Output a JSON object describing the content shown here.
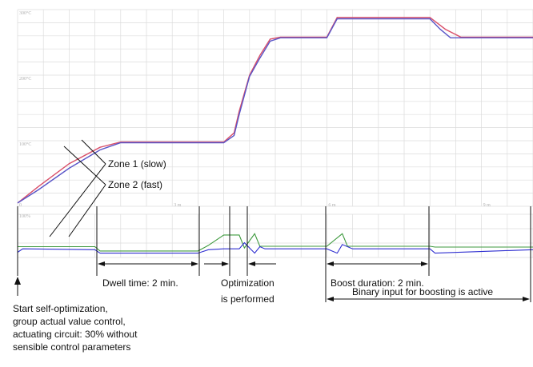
{
  "chart_data": {
    "type": "line",
    "title": "",
    "xlabel": "",
    "ylabel": "",
    "grid": true,
    "x_unit": "min",
    "temperature_panel": {
      "ylim": [
        0,
        300
      ],
      "y_ticks": [
        "300°C",
        "200°C",
        "100°C"
      ],
      "series": [
        {
          "color": "#d9506a",
          "x": [
            0.0,
            0.4,
            1.0,
            1.6,
            2.0,
            2.5,
            3.0,
            3.5,
            4.0,
            4.2,
            4.3,
            4.5,
            4.7,
            4.9,
            5.1,
            5.3,
            5.5,
            6.0,
            6.2,
            6.5,
            7.0,
            7.5,
            8.0,
            8.3,
            8.6,
            9.0,
            9.5,
            10.0
          ],
          "y": [
            5,
            30,
            65,
            90,
            98,
            98,
            98,
            98,
            98,
            112,
            145,
            200,
            230,
            255,
            258,
            258,
            258,
            258,
            288,
            288,
            288,
            288,
            288,
            270,
            258,
            258,
            258,
            258
          ]
        },
        {
          "color": "#5a56c8",
          "x": [
            0.0,
            0.4,
            1.0,
            1.6,
            2.0,
            2.5,
            3.0,
            3.5,
            4.0,
            4.2,
            4.3,
            4.5,
            4.7,
            4.9,
            5.1,
            5.3,
            5.5,
            6.0,
            6.2,
            6.5,
            7.0,
            7.5,
            8.0,
            8.2,
            8.4,
            9.0,
            9.5,
            10.0
          ],
          "y": [
            5,
            25,
            58,
            86,
            97,
            97,
            97,
            97,
            97,
            108,
            140,
            198,
            226,
            252,
            257,
            257,
            257,
            257,
            286,
            286,
            286,
            286,
            286,
            270,
            257,
            257,
            257,
            257
          ]
        }
      ]
    },
    "output_panel": {
      "y_ticks": [
        "100%"
      ],
      "x_ticks": [
        "0",
        "3 m",
        "6 m",
        "9 m"
      ],
      "series": [
        {
          "color": "#3f9a3f",
          "x": [
            0.0,
            0.1,
            1.5,
            1.6,
            3.5,
            3.7,
            4.0,
            4.3,
            4.4,
            4.6,
            4.7,
            4.8,
            5.5,
            6.0,
            6.3,
            6.4,
            6.5,
            8.0,
            8.1,
            10.0
          ],
          "y": [
            25,
            25,
            25,
            15,
            15,
            28,
            52,
            52,
            22,
            55,
            26,
            26,
            26,
            26,
            55,
            26,
            26,
            26,
            24,
            24
          ]
        },
        {
          "color": "#2e2ed0",
          "x": [
            0.0,
            0.1,
            1.5,
            1.6,
            3.5,
            3.7,
            4.0,
            4.3,
            4.4,
            4.6,
            4.7,
            4.8,
            5.5,
            6.0,
            6.2,
            6.3,
            6.5,
            8.0,
            8.1,
            10.0
          ],
          "y": [
            12,
            20,
            18,
            10,
            10,
            18,
            20,
            20,
            34,
            10,
            25,
            20,
            20,
            20,
            10,
            30,
            20,
            20,
            10,
            18
          ]
        }
      ]
    },
    "annotations": {
      "zone1": "Zone 1 (slow)",
      "zone2": "Zone 2 (fast)",
      "dwell": "Dwell time: 2 min.",
      "opt1": "Optimization",
      "opt2": "is performed",
      "boost": "Boost duration: 2 min.",
      "binary": "Binary input for boosting is active",
      "start1": "Start self-optimization,",
      "start2": "group actual value control,",
      "start3": "actuating circuit: 30% without",
      "start4": "sensible control parameters"
    }
  }
}
